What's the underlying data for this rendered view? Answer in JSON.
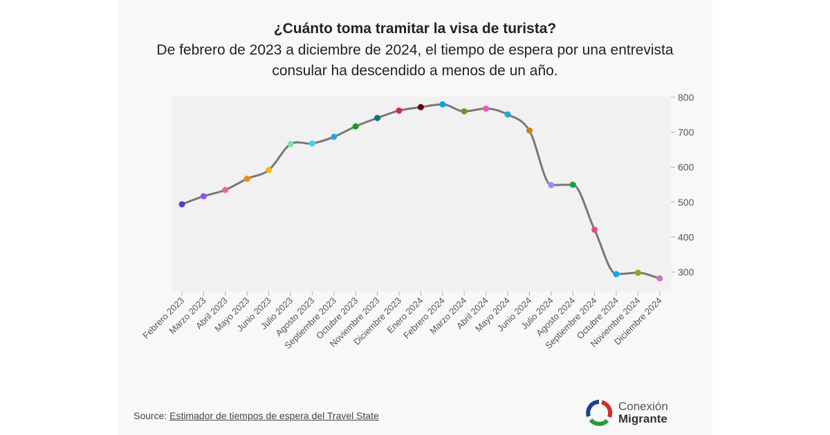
{
  "header": {
    "title": "¿Cuánto toma tramitar la visa de turista?",
    "subtitle": "De febrero de 2023 a diciembre de 2024, el tiempo de espera por una entrevista consular ha descendido a menos de un año."
  },
  "footer": {
    "source_prefix": "Source: ",
    "source_link": "Estimador de tiempos de espera del Travel State",
    "logo_line1": "Conexión",
    "logo_line2": "Migrante"
  },
  "chart_data": {
    "type": "line",
    "title": "¿Cuánto toma tramitar la visa de turista?",
    "categories": [
      "Febrero 2023",
      "Marzo 2023",
      "Abril 2023",
      "Mayo 2023",
      "Junio 2023",
      "Julio 2023",
      "Agosto 2023",
      "Septiembre 2023",
      "Octubre 2023",
      "Noviembre 2023",
      "Diciembre 2023",
      "Enero 2024",
      "Febrero 2024",
      "Marzo 2024",
      "Abril 2024",
      "Mayo 2024",
      "Junio 2024",
      "Julio 2024",
      "Agosto 2024",
      "Septiembre 2024",
      "Octubre 2024",
      "Noviembre 2024",
      "Diciembre 2024"
    ],
    "values": [
      494,
      517,
      535,
      567,
      592,
      666,
      668,
      687,
      717,
      741,
      762,
      772,
      780,
      760,
      768,
      751,
      705,
      549,
      550,
      421,
      294,
      298,
      282
    ],
    "point_colors": [
      "#4f3fd8",
      "#8b5ce6",
      "#e8678a",
      "#f28c0f",
      "#f5b80c",
      "#7fe0a0",
      "#3fd8e8",
      "#29a3e0",
      "#1a9c1a",
      "#0f6e80",
      "#d42a3a",
      "#5c0008",
      "#0aa0f0",
      "#5fa020",
      "#e060b0",
      "#1aa8d8",
      "#d08010",
      "#8f8fff",
      "#10a050",
      "#e85070",
      "#10a8f0",
      "#a0a010",
      "#d070d0"
    ],
    "line_color": "#777777",
    "ylim": [
      250,
      800
    ],
    "yticks": [
      300,
      400,
      500,
      600,
      700,
      800
    ],
    "yaxis_side": "right",
    "grid": false,
    "smooth": true
  }
}
